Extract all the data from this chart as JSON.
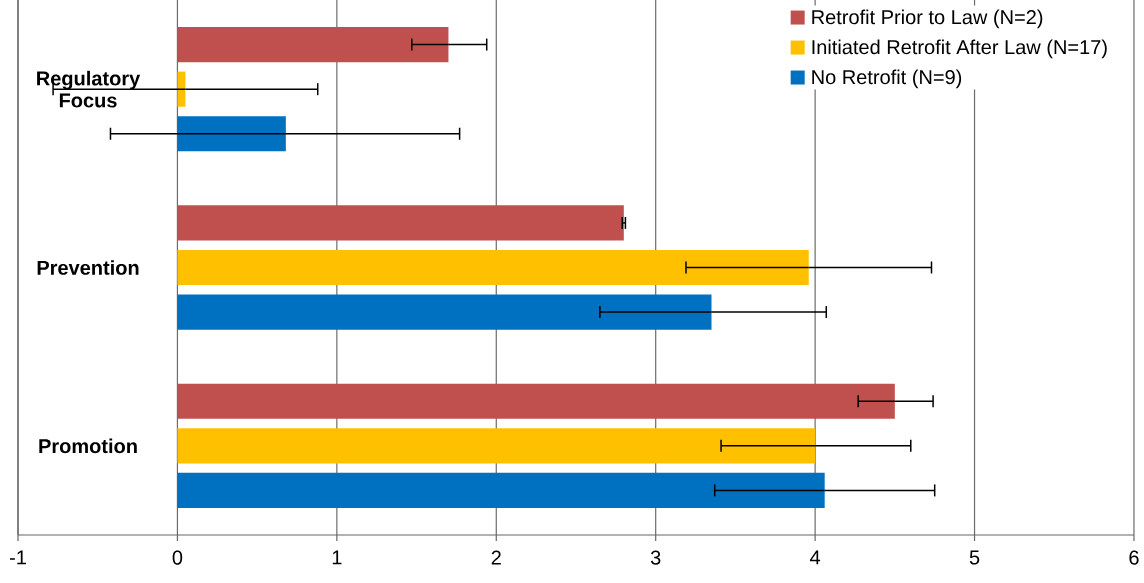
{
  "chart_data": {
    "type": "bar",
    "orientation": "horizontal",
    "categories": [
      "Regulatory Focus",
      "Prevention",
      "Promotion"
    ],
    "series": [
      {
        "name": "Retrofit Prior to Law (N=2)",
        "color": "#c0504d",
        "values": [
          1.7,
          2.8,
          4.5
        ],
        "errors": [
          [
            1.47,
            1.94
          ],
          0.01,
          [
            4.27,
            4.74
          ]
        ]
      },
      {
        "name": "Initiated Retrofit After Law (N=17)",
        "color": "#ffc000",
        "values": [
          0.05,
          3.96,
          4.0
        ],
        "errors": [
          [
            -0.78,
            0.88
          ],
          [
            3.19,
            4.73
          ],
          [
            3.41,
            4.6
          ]
        ]
      },
      {
        "name": "No Retrofit (N=9)",
        "color": "#0070c0",
        "values": [
          0.68,
          3.35,
          4.06
        ],
        "errors": [
          [
            -0.42,
            1.77
          ],
          [
            2.65,
            4.07
          ],
          [
            3.37,
            4.75
          ]
        ]
      }
    ],
    "xlim": [
      -1,
      6
    ],
    "xticks": [
      -1,
      0,
      1,
      2,
      3,
      4,
      5,
      6
    ],
    "grid": "x",
    "legend": "top right"
  }
}
